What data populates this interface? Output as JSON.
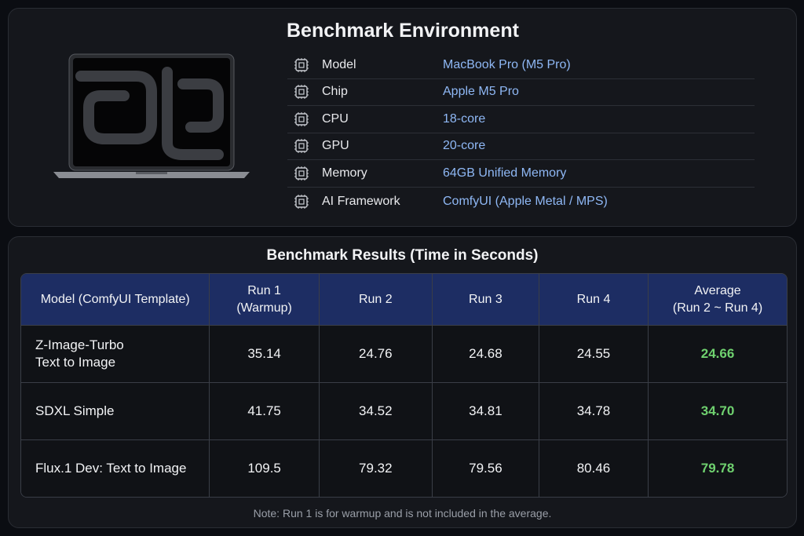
{
  "environment": {
    "title": "Benchmark Environment",
    "rows": [
      {
        "label": "Model",
        "value": "MacBook Pro (M5 Pro)"
      },
      {
        "label": "Chip",
        "value": "Apple M5 Pro"
      },
      {
        "label": "CPU",
        "value": "18-core"
      },
      {
        "label": "GPU",
        "value": "20-core"
      },
      {
        "label": "Memory",
        "value": "64GB Unified Memory"
      },
      {
        "label": "AI Framework",
        "value": "ComfyUI (Apple Metal / MPS)"
      }
    ]
  },
  "results": {
    "title": "Benchmark Results (Time in Seconds)",
    "header": [
      [
        "Model (ComfyUI Template)"
      ],
      [
        "Run 1",
        "(Warmup)"
      ],
      [
        "Run 2"
      ],
      [
        "Run 3"
      ],
      [
        "Run 4"
      ],
      [
        "Average",
        "(Run 2 ~ Run 4)"
      ]
    ],
    "rows": [
      [
        [
          "Z-Image-Turbo",
          "Text to Image"
        ],
        [
          "35.14"
        ],
        [
          "24.76"
        ],
        [
          "24.68"
        ],
        [
          "24.55"
        ],
        [
          "24.66"
        ]
      ],
      [
        [
          "SDXL Simple"
        ],
        [
          "41.75"
        ],
        [
          "34.52"
        ],
        [
          "34.81"
        ],
        [
          "34.78"
        ],
        [
          "34.70"
        ]
      ],
      [
        [
          "Flux.1 Dev: Text to Image"
        ],
        [
          "109.5"
        ],
        [
          "79.32"
        ],
        [
          "79.56"
        ],
        [
          "80.46"
        ],
        [
          "79.78"
        ]
      ]
    ],
    "note": "Note: Run 1 is for warmup and is not included in the average."
  }
}
